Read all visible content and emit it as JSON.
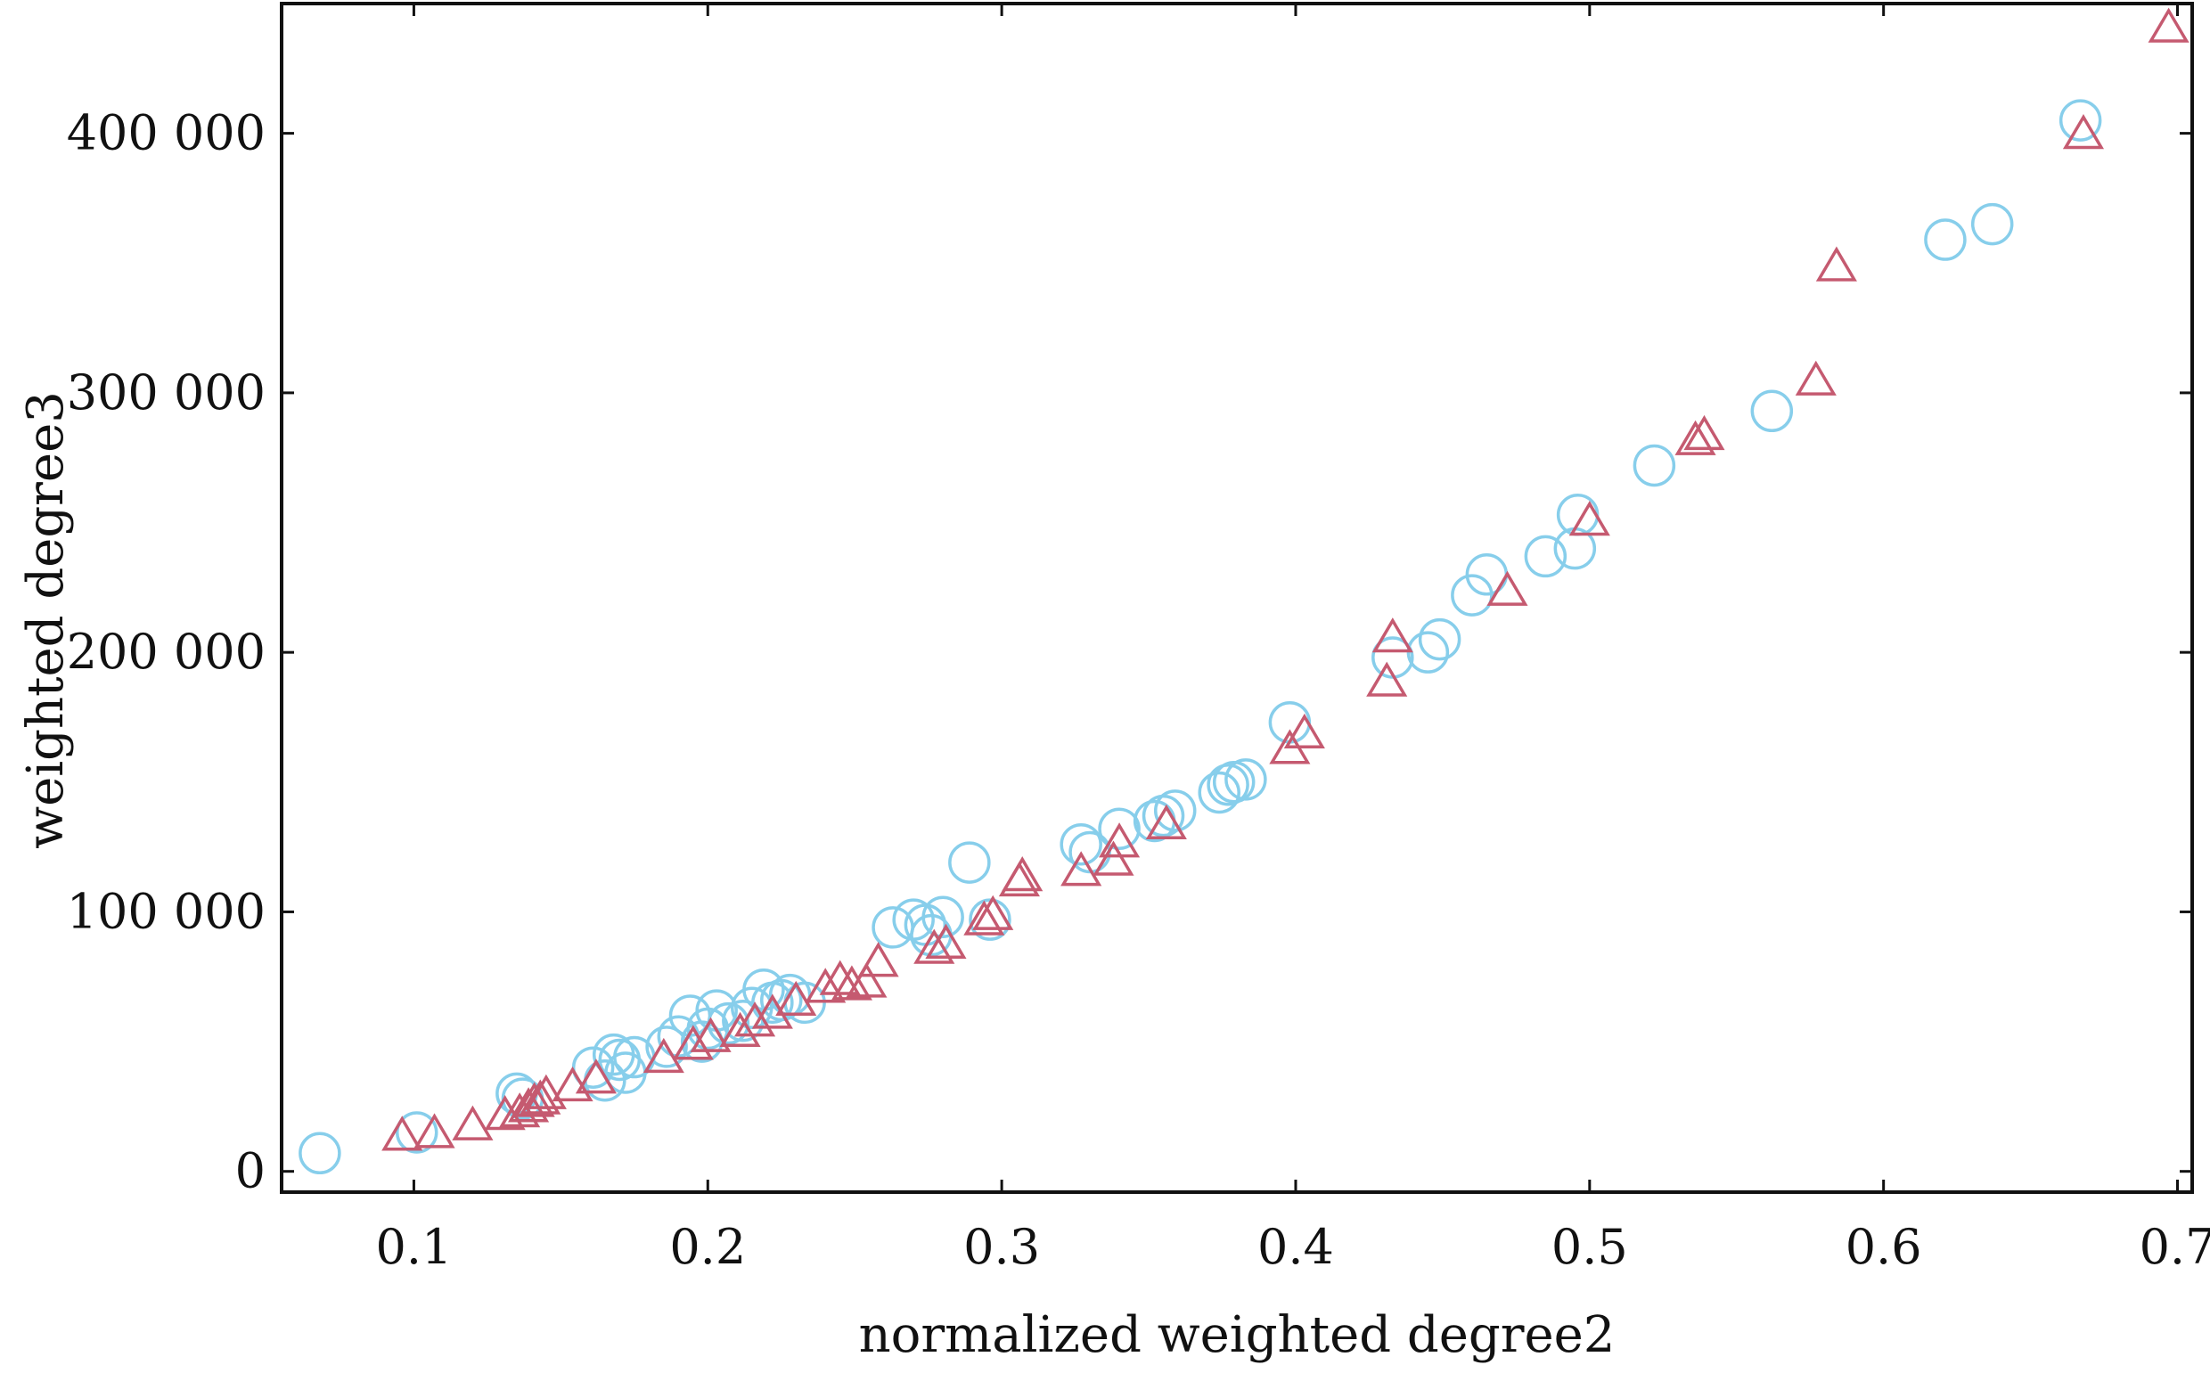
{
  "chart_data": {
    "type": "scatter",
    "xlabel": "normalized weighted degree2",
    "ylabel": "weighted degree3",
    "xlim": [
      0.055,
      0.705
    ],
    "ylim": [
      -8000,
      450000
    ],
    "x_ticks": [
      {
        "value": 0.1,
        "label": "0.1"
      },
      {
        "value": 0.2,
        "label": "0.2"
      },
      {
        "value": 0.3,
        "label": "0.3"
      },
      {
        "value": 0.4,
        "label": "0.4"
      },
      {
        "value": 0.5,
        "label": "0.5"
      },
      {
        "value": 0.6,
        "label": "0.6"
      },
      {
        "value": 0.7,
        "label": "0.7"
      }
    ],
    "y_ticks": [
      {
        "value": 0,
        "label": "0"
      },
      {
        "value": 100000,
        "label": "100 000"
      },
      {
        "value": 200000,
        "label": "200 000"
      },
      {
        "value": 300000,
        "label": "300 000"
      },
      {
        "value": 400000,
        "label": "400 000"
      }
    ],
    "grid": false,
    "legend": "none",
    "series": [
      {
        "marker": "circle",
        "color": "#87CEEB",
        "points": [
          [
            0.068,
            7000
          ],
          [
            0.101,
            15000
          ],
          [
            0.135,
            30000
          ],
          [
            0.137,
            28000
          ],
          [
            0.161,
            40000
          ],
          [
            0.165,
            35000
          ],
          [
            0.168,
            45000
          ],
          [
            0.17,
            43000
          ],
          [
            0.175,
            44000
          ],
          [
            0.172,
            38000
          ],
          [
            0.186,
            48000
          ],
          [
            0.19,
            52000
          ],
          [
            0.194,
            60000
          ],
          [
            0.198,
            50000
          ],
          [
            0.2,
            55000
          ],
          [
            0.203,
            62000
          ],
          [
            0.207,
            57000
          ],
          [
            0.212,
            58000
          ],
          [
            0.215,
            63000
          ],
          [
            0.219,
            70000
          ],
          [
            0.222,
            65000
          ],
          [
            0.225,
            66000
          ],
          [
            0.228,
            68000
          ],
          [
            0.233,
            65000
          ],
          [
            0.263,
            94000
          ],
          [
            0.27,
            97000
          ],
          [
            0.274,
            95000
          ],
          [
            0.276,
            91000
          ],
          [
            0.28,
            98000
          ],
          [
            0.289,
            119000
          ],
          [
            0.296,
            97000
          ],
          [
            0.327,
            126000
          ],
          [
            0.33,
            123000
          ],
          [
            0.34,
            132000
          ],
          [
            0.352,
            135000
          ],
          [
            0.355,
            137000
          ],
          [
            0.359,
            139000
          ],
          [
            0.374,
            146000
          ],
          [
            0.377,
            149000
          ],
          [
            0.379,
            150000
          ],
          [
            0.383,
            151000
          ],
          [
            0.398,
            173000
          ],
          [
            0.433,
            198000
          ],
          [
            0.445,
            200000
          ],
          [
            0.449,
            205000
          ],
          [
            0.46,
            222000
          ],
          [
            0.465,
            230000
          ],
          [
            0.485,
            237000
          ],
          [
            0.495,
            240000
          ],
          [
            0.496,
            253000
          ],
          [
            0.522,
            272000
          ],
          [
            0.562,
            293000
          ],
          [
            0.621,
            359000
          ],
          [
            0.637,
            365000
          ],
          [
            0.667,
            405000
          ]
        ]
      },
      {
        "marker": "triangle",
        "color": "#C55A70",
        "points": [
          [
            0.096,
            13000
          ],
          [
            0.107,
            14000
          ],
          [
            0.12,
            17000
          ],
          [
            0.131,
            21000
          ],
          [
            0.136,
            22000
          ],
          [
            0.139,
            24000
          ],
          [
            0.141,
            26000
          ],
          [
            0.143,
            27000
          ],
          [
            0.145,
            29000
          ],
          [
            0.154,
            32000
          ],
          [
            0.162,
            35000
          ],
          [
            0.185,
            43000
          ],
          [
            0.195,
            48000
          ],
          [
            0.201,
            51000
          ],
          [
            0.211,
            53000
          ],
          [
            0.216,
            57000
          ],
          [
            0.222,
            60000
          ],
          [
            0.23,
            65000
          ],
          [
            0.24,
            70000
          ],
          [
            0.245,
            73000
          ],
          [
            0.249,
            71000
          ],
          [
            0.254,
            72000
          ],
          [
            0.258,
            80000
          ],
          [
            0.277,
            85000
          ],
          [
            0.281,
            87000
          ],
          [
            0.294,
            96000
          ],
          [
            0.297,
            98000
          ],
          [
            0.306,
            111000
          ],
          [
            0.307,
            113000
          ],
          [
            0.327,
            115000
          ],
          [
            0.338,
            119000
          ],
          [
            0.34,
            126000
          ],
          [
            0.356,
            133000
          ],
          [
            0.398,
            162000
          ],
          [
            0.403,
            168000
          ],
          [
            0.431,
            188000
          ],
          [
            0.433,
            205000
          ],
          [
            0.472,
            223000
          ],
          [
            0.5,
            250000
          ],
          [
            0.536,
            281000
          ],
          [
            0.539,
            283000
          ],
          [
            0.577,
            304000
          ],
          [
            0.584,
            348000
          ],
          [
            0.668,
            399000
          ],
          [
            0.697,
            440000
          ]
        ]
      }
    ]
  }
}
